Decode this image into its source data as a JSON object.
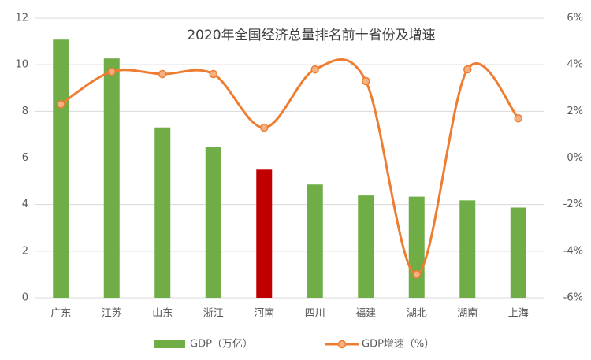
{
  "chart_data": {
    "type": "bar",
    "title": "2020年全国经济总量排名前十省份及增速",
    "categories": [
      "广东",
      "江苏",
      "山东",
      "浙江",
      "河南",
      "四川",
      "福建",
      "湖北",
      "湖南",
      "上海"
    ],
    "series": [
      {
        "name": "GDP（万亿）",
        "type": "bar",
        "color": "#70ad47",
        "bar_colors": [
          "#70ad47",
          "#70ad47",
          "#70ad47",
          "#70ad47",
          "#c00000",
          "#70ad47",
          "#70ad47",
          "#70ad47",
          "#70ad47",
          "#70ad47"
        ],
        "values": [
          11.08,
          10.27,
          7.31,
          6.46,
          5.5,
          4.86,
          4.39,
          4.34,
          4.18,
          3.87
        ]
      },
      {
        "name": "GDP增速（%）",
        "type": "line",
        "axis": "y2",
        "color": "#ed7d31",
        "marker_color": "#f4b183",
        "values": [
          2.3,
          3.7,
          3.6,
          3.6,
          1.3,
          3.8,
          3.3,
          -5.0,
          3.8,
          1.7
        ]
      }
    ],
    "ylim": [
      0,
      12
    ],
    "yticks": [
      0,
      2,
      4,
      6,
      8,
      10,
      12
    ],
    "y2lim": [
      -6,
      6
    ],
    "y2ticks": [
      {
        "value": -6,
        "label": "-6%"
      },
      {
        "value": -4,
        "label": "-4%"
      },
      {
        "value": -2,
        "label": "-2%"
      },
      {
        "value": 0,
        "label": "0%"
      },
      {
        "value": 2,
        "label": "2%"
      },
      {
        "value": 4,
        "label": "4%"
      },
      {
        "value": 6,
        "label": "6%"
      }
    ],
    "grid": true
  }
}
